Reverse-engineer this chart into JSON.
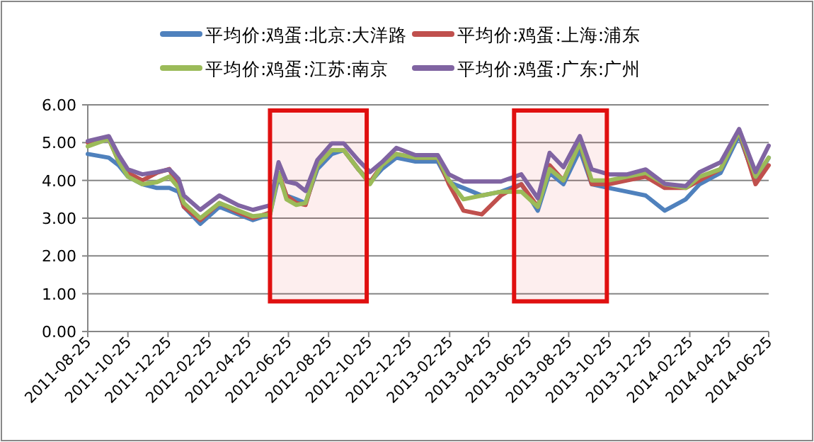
{
  "chart_data": {
    "type": "line",
    "x": [
      "2011-08-25",
      "2011-09-26",
      "2011-10-11",
      "2011-10-25",
      "2011-11-16",
      "2011-12-08",
      "2011-12-27",
      "2012-01-10",
      "2012-01-18",
      "2012-02-12",
      "2012-03-12",
      "2012-04-10",
      "2012-05-02",
      "2012-05-28",
      "2012-06-10",
      "2012-06-22",
      "2012-07-07",
      "2012-07-21",
      "2012-08-08",
      "2012-08-30",
      "2012-09-17",
      "2012-10-09",
      "2012-10-27",
      "2012-11-14",
      "2012-12-06",
      "2013-01-04",
      "2013-02-07",
      "2013-02-24",
      "2013-03-18",
      "2013-04-15",
      "2013-05-14",
      "2013-06-14",
      "2013-07-09",
      "2013-07-27",
      "2013-08-17",
      "2013-09-11",
      "2013-09-29",
      "2013-10-25",
      "2013-11-22",
      "2013-12-20",
      "2014-01-18",
      "2014-02-19",
      "2014-03-12",
      "2014-04-13",
      "2014-05-11",
      "2014-06-05",
      "2014-06-25"
    ],
    "series": [
      {
        "name": "平均价:鸡蛋:北京:大洋路",
        "color": "#4f81bd",
        "values": [
          4.7,
          4.6,
          4.4,
          4.1,
          3.9,
          3.8,
          3.8,
          3.7,
          3.3,
          2.85,
          3.3,
          3.1,
          2.95,
          3.1,
          4.1,
          3.6,
          3.5,
          3.4,
          4.3,
          4.7,
          4.8,
          4.3,
          3.95,
          4.3,
          4.6,
          4.5,
          4.5,
          3.95,
          3.8,
          3.6,
          3.7,
          3.9,
          3.2,
          4.2,
          3.9,
          4.8,
          3.9,
          3.8,
          3.7,
          3.6,
          3.2,
          3.5,
          3.9,
          4.2,
          5.2,
          4.0,
          4.6
        ]
      },
      {
        "name": "平均价:鸡蛋:上海:浦东",
        "color": "#c0504d",
        "values": [
          5.0,
          5.1,
          4.5,
          4.2,
          4.0,
          4.2,
          4.3,
          3.8,
          3.3,
          2.95,
          3.4,
          3.15,
          3.0,
          3.15,
          4.2,
          3.6,
          3.4,
          3.35,
          4.4,
          4.8,
          4.8,
          4.3,
          3.95,
          4.4,
          4.7,
          4.6,
          4.6,
          3.9,
          3.2,
          3.1,
          3.6,
          3.9,
          3.3,
          4.4,
          4.0,
          5.0,
          3.9,
          3.9,
          4.0,
          4.1,
          3.8,
          3.8,
          4.0,
          4.3,
          5.3,
          3.9,
          4.4
        ]
      },
      {
        "name": "平均价:鸡蛋:江苏:南京",
        "color": "#9bbb59",
        "values": [
          4.9,
          5.1,
          4.5,
          4.1,
          3.9,
          3.95,
          4.1,
          3.8,
          3.4,
          3.0,
          3.4,
          3.2,
          3.05,
          3.1,
          4.2,
          3.5,
          3.35,
          3.4,
          4.4,
          4.8,
          4.8,
          4.3,
          3.9,
          4.4,
          4.7,
          4.6,
          4.6,
          4.0,
          3.5,
          3.6,
          3.7,
          3.7,
          3.3,
          4.3,
          4.0,
          5.0,
          4.0,
          4.0,
          4.1,
          4.2,
          3.9,
          3.8,
          4.1,
          4.3,
          5.3,
          4.1,
          4.6
        ]
      },
      {
        "name": "平均价:鸡蛋:广东:广州",
        "color": "#8064a2",
        "values": [
          5.04,
          5.17,
          4.67,
          4.29,
          4.16,
          4.22,
          4.29,
          4.04,
          3.6,
          3.22,
          3.6,
          3.34,
          3.22,
          3.34,
          4.48,
          3.97,
          3.91,
          3.72,
          4.54,
          4.98,
          4.98,
          4.54,
          4.22,
          4.48,
          4.86,
          4.67,
          4.67,
          4.16,
          3.97,
          3.97,
          3.97,
          4.16,
          3.53,
          4.73,
          4.35,
          5.17,
          4.29,
          4.16,
          4.16,
          4.29,
          3.91,
          3.85,
          4.22,
          4.48,
          5.36,
          4.22,
          4.92
        ]
      }
    ],
    "xlim": [
      "2011-08-25",
      "2014-06-25"
    ],
    "xticks": [
      "2011-08-25",
      "2011-10-25",
      "2011-12-25",
      "2012-02-25",
      "2012-04-25",
      "2012-06-25",
      "2012-08-25",
      "2012-10-25",
      "2012-12-25",
      "2013-02-25",
      "2013-04-25",
      "2013-06-25",
      "2013-08-25",
      "2013-10-25",
      "2013-12-25",
      "2014-02-25",
      "2014-04-25",
      "2014-06-25"
    ],
    "ylim": [
      0,
      6
    ],
    "yticks": [
      {
        "value": 0,
        "label": "0.00"
      },
      {
        "value": 1,
        "label": "1.00"
      },
      {
        "value": 2,
        "label": "2.00"
      },
      {
        "value": 3,
        "label": "3.00"
      },
      {
        "value": 4,
        "label": "4.00"
      },
      {
        "value": 5,
        "label": "5.00"
      },
      {
        "value": 6,
        "label": "6.00"
      }
    ],
    "bands": [
      {
        "axis": "x",
        "from": "2012-05-28",
        "to": "2012-10-22",
        "color": "#e01010"
      },
      {
        "axis": "x",
        "from": "2013-06-03",
        "to": "2013-10-22",
        "color": "#e01010"
      }
    ],
    "grid": "y",
    "legend": "top",
    "line_style": "solid",
    "marker": "none"
  }
}
